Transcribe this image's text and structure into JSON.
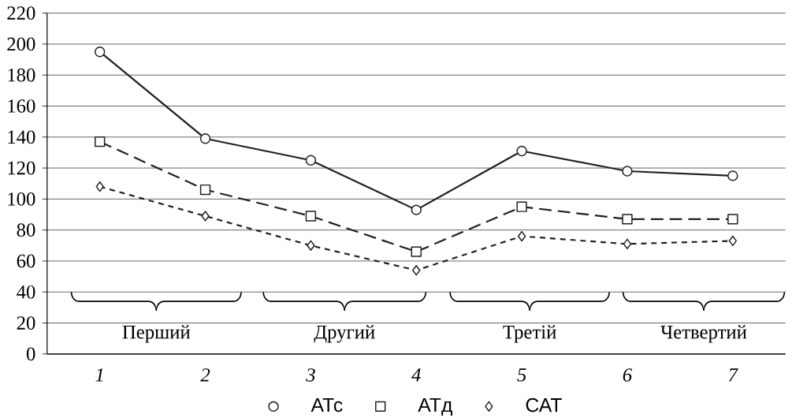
{
  "chart_data": {
    "type": "line",
    "categories": [
      "1",
      "2",
      "3",
      "4",
      "5",
      "6",
      "7"
    ],
    "ylim": [
      0,
      220
    ],
    "yticks": [
      0,
      20,
      40,
      60,
      80,
      100,
      120,
      140,
      160,
      180,
      200,
      220
    ],
    "grid": "y",
    "legend": "bottom",
    "series": [
      {
        "name": "АТс",
        "color": "#231f20",
        "marker": "circle",
        "line_style": "solid",
        "values": [
          195,
          139,
          125,
          93,
          131,
          118,
          115
        ]
      },
      {
        "name": "АТд",
        "color": "#231f20",
        "marker": "square",
        "line_style": "dashed",
        "values": [
          137,
          106,
          89,
          66,
          95,
          87,
          87
        ]
      },
      {
        "name": "САТ",
        "color": "#231f20",
        "marker": "diamond",
        "line_style": "dotted",
        "values": [
          108,
          89,
          70,
          54,
          76,
          71,
          73
        ]
      }
    ],
    "annotations": [
      "Перший",
      "Другий",
      "Третій",
      "Четвертий"
    ]
  }
}
